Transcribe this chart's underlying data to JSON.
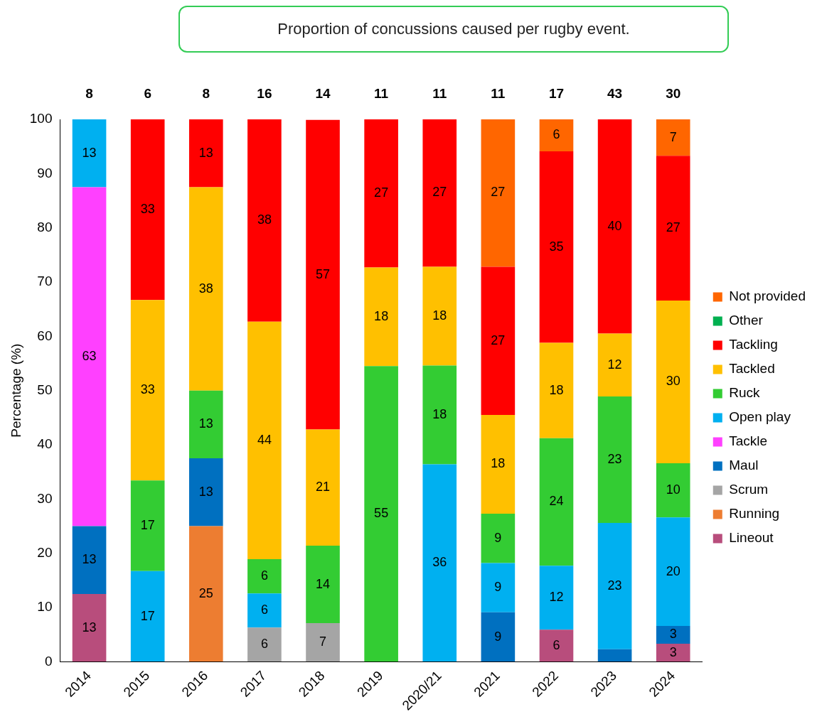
{
  "chart_data": {
    "type": "bar",
    "stacked": true,
    "title": "Proportion of concussions caused per rugby event.",
    "ylabel": "Percentage (%)",
    "categories": [
      "2014",
      "2015",
      "2016",
      "2017",
      "2018",
      "2019",
      "2020/21",
      "2021",
      "2022",
      "2023",
      "2024"
    ],
    "ylim": [
      0,
      100
    ],
    "yticks": [
      0,
      10,
      20,
      30,
      40,
      50,
      60,
      70,
      80,
      90,
      100
    ],
    "legend": "right",
    "annotations": [
      {
        "text": "8",
        "x": "2014",
        "y": 100
      },
      {
        "text": "6",
        "x": "2015",
        "y": 100
      },
      {
        "text": "8",
        "x": "2016",
        "y": 100
      },
      {
        "text": "16",
        "x": "2017",
        "y": 100
      },
      {
        "text": "14",
        "x": "2018",
        "y": 100
      },
      {
        "text": "11",
        "x": "2019",
        "y": 100
      },
      {
        "text": "11",
        "x": "2020/21",
        "y": 100
      },
      {
        "text": "11",
        "x": "2021",
        "y": 100
      },
      {
        "text": "17",
        "x": "2022",
        "y": 100
      },
      {
        "text": "43",
        "x": "2023",
        "y": 100
      },
      {
        "text": "30",
        "x": "2024",
        "y": 100
      }
    ],
    "series": [
      {
        "name": "Lineout",
        "color": "#b84d7c",
        "values": [
          12.5,
          null,
          null,
          null,
          null,
          null,
          null,
          null,
          5.9,
          null,
          3.3
        ],
        "value_labels": [
          "13",
          null,
          null,
          null,
          null,
          null,
          null,
          null,
          "6",
          null,
          "3"
        ]
      },
      {
        "name": "Running",
        "color": "#ed7d31",
        "values": [
          null,
          null,
          25,
          null,
          null,
          null,
          null,
          null,
          null,
          null,
          null
        ],
        "value_labels": [
          null,
          null,
          "25",
          null,
          null,
          null,
          null,
          null,
          null,
          null,
          null
        ]
      },
      {
        "name": "Scrum",
        "color": "#a5a5a5",
        "values": [
          null,
          null,
          null,
          6.3,
          7.1,
          null,
          null,
          null,
          null,
          null,
          null
        ],
        "value_labels": [
          null,
          null,
          null,
          "6",
          "7",
          null,
          null,
          null,
          null,
          null,
          null
        ]
      },
      {
        "name": "Maul",
        "color": "#0070c0",
        "values": [
          12.5,
          null,
          12.5,
          null,
          null,
          null,
          null,
          9.1,
          null,
          2.3,
          3.3
        ],
        "value_labels": [
          "13",
          null,
          "13",
          null,
          null,
          null,
          null,
          "9",
          null,
          null,
          "3"
        ]
      },
      {
        "name": "Tackle",
        "color": "#ff40ff",
        "values": [
          62.5,
          null,
          null,
          null,
          null,
          null,
          null,
          null,
          null,
          null,
          null
        ],
        "value_labels": [
          "63",
          null,
          null,
          null,
          null,
          null,
          null,
          null,
          null,
          null,
          null
        ]
      },
      {
        "name": "Open play",
        "color": "#00b0f0",
        "values": [
          12.5,
          16.7,
          null,
          6.3,
          null,
          null,
          36.4,
          9.1,
          11.8,
          23.3,
          20
        ],
        "value_labels": [
          "13",
          "17",
          null,
          "6",
          null,
          null,
          "36",
          "9",
          "12",
          "23",
          "20"
        ]
      },
      {
        "name": "Ruck",
        "color": "#33cc33",
        "values": [
          null,
          16.7,
          12.5,
          6.3,
          14.3,
          54.5,
          18.2,
          9.1,
          23.5,
          23.3,
          10
        ],
        "value_labels": [
          null,
          "17",
          "13",
          "6",
          "14",
          "55",
          "18",
          "9",
          "24",
          "23",
          "10"
        ]
      },
      {
        "name": "Tackled",
        "color": "#ffc000",
        "values": [
          null,
          33.3,
          37.5,
          43.8,
          21.4,
          18.2,
          18.2,
          18.2,
          17.6,
          11.6,
          30
        ],
        "value_labels": [
          null,
          "33",
          "38",
          "44",
          "21",
          "18",
          "18",
          "18",
          "18",
          "12",
          "30"
        ]
      },
      {
        "name": "Tackling",
        "color": "#ff0000",
        "values": [
          null,
          33.3,
          12.5,
          37.5,
          57.1,
          27.3,
          27.3,
          27.3,
          35.3,
          39.5,
          26.7
        ],
        "value_labels": [
          null,
          "33",
          "13",
          "38",
          "57",
          "27",
          "27",
          "27",
          "35",
          "40",
          "27"
        ]
      },
      {
        "name": "Other",
        "color": "#00b050",
        "values": [
          null,
          null,
          null,
          null,
          null,
          null,
          null,
          null,
          null,
          null,
          null
        ],
        "value_labels": [
          null,
          null,
          null,
          null,
          null,
          null,
          null,
          null,
          null,
          null,
          null
        ]
      },
      {
        "name": "Not provided",
        "color": "#ff6600",
        "values": [
          null,
          null,
          null,
          null,
          null,
          null,
          null,
          27.3,
          5.9,
          null,
          6.7
        ],
        "value_labels": [
          null,
          null,
          null,
          null,
          null,
          null,
          null,
          "27",
          "6",
          null,
          "7"
        ]
      }
    ]
  }
}
